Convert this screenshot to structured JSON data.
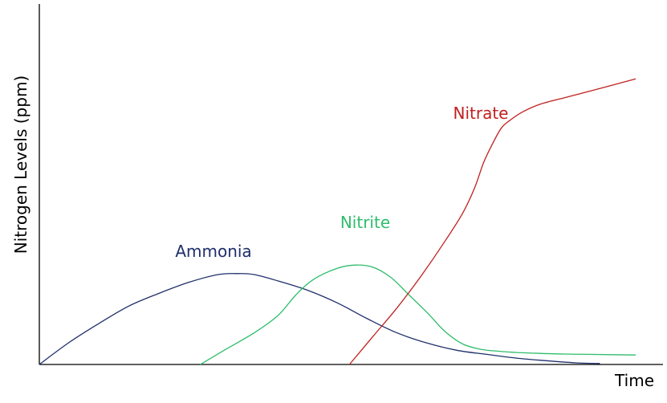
{
  "chart_data": {
    "type": "line",
    "title": "",
    "xlabel": "Time",
    "ylabel": "Nitrogen  Levels (ppm)",
    "xlim": [
      0,
      100
    ],
    "ylim": [
      0,
      100
    ],
    "grid": false,
    "legend": "none",
    "series": [
      {
        "name": "Ammonia",
        "color": "#1f2f6b",
        "x": [
          0,
          5,
          10,
          15,
          20,
          25,
          30,
          33,
          36,
          40,
          45,
          50,
          55,
          60,
          65,
          70,
          75,
          80,
          85,
          90,
          94
        ],
        "y": [
          0,
          7,
          13,
          18.5,
          22.5,
          26,
          28.5,
          28.8,
          28.5,
          26.5,
          23.5,
          19.5,
          14.5,
          10,
          6.8,
          4.5,
          3.2,
          2,
          1.2,
          0.5,
          0.3
        ]
      },
      {
        "name": "Nitrite",
        "color": "#2ebd6b",
        "x": [
          27,
          31,
          36,
          40,
          43,
          46,
          50,
          53,
          56,
          59,
          62,
          65,
          68,
          71,
          74,
          77,
          80,
          84,
          88,
          92,
          96,
          100
        ],
        "y": [
          0,
          4.5,
          10,
          15.5,
          22,
          27,
          30.5,
          31.5,
          30.8,
          27.5,
          22,
          16.5,
          10.5,
          6.5,
          4.8,
          4.2,
          3.8,
          3.5,
          3.3,
          3.2,
          3.1,
          3.0
        ]
      },
      {
        "name": "Nitrate",
        "color": "#c0201f",
        "x": [
          52,
          56,
          60,
          64,
          68,
          71,
          73,
          74.5,
          76,
          77.5,
          79,
          81,
          84,
          88,
          92,
          96,
          100
        ],
        "y": [
          0,
          9,
          18,
          28,
          39,
          48,
          56,
          64,
          70,
          75,
          77.5,
          80,
          82.5,
          84.5,
          86.5,
          88.5,
          90.5
        ]
      }
    ],
    "labels": [
      {
        "text": "Ammonia",
        "series": "Ammonia"
      },
      {
        "text": "Nitrite",
        "series": "Nitrite"
      },
      {
        "text": "Nitrate",
        "series": "Nitrate"
      }
    ]
  }
}
